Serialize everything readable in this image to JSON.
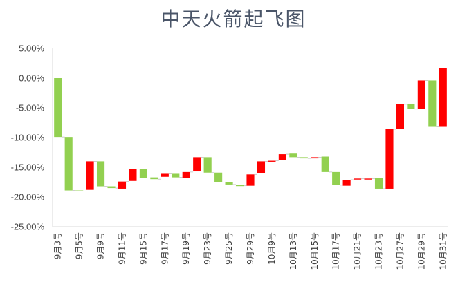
{
  "chart_data": {
    "type": "waterfall",
    "title": "中天火箭起飞图",
    "ylim": [
      -0.25,
      0.05
    ],
    "y_ticks": [
      "5.00%",
      "0.00%",
      "-5.00%",
      "-10.00%",
      "-15.00%",
      "-20.00%",
      "-25.00%"
    ],
    "y_tick_values": [
      0.05,
      0.0,
      -0.05,
      -0.1,
      -0.15,
      -0.2,
      -0.25
    ],
    "x_tick_labels": [
      "9月3号",
      "9月5号",
      "9月9号",
      "9月11号",
      "9月15号",
      "9月17号",
      "9月19号",
      "9月23号",
      "9月25号",
      "9月29号",
      "10月9号",
      "10月13号",
      "10月15号",
      "10月17号",
      "10月21号",
      "10月23号",
      "10月27号",
      "10月29号",
      "10月31号"
    ],
    "bars": [
      {
        "start": 0.0,
        "end": -0.099
      },
      {
        "start": -0.099,
        "end": -0.189
      },
      {
        "start": -0.189,
        "end": -0.19
      },
      {
        "start": -0.188,
        "end": -0.14
      },
      {
        "start": -0.14,
        "end": -0.182
      },
      {
        "start": -0.182,
        "end": -0.185
      },
      {
        "start": -0.186,
        "end": -0.174
      },
      {
        "start": -0.173,
        "end": -0.153
      },
      {
        "start": -0.153,
        "end": -0.168
      },
      {
        "start": -0.167,
        "end": -0.17
      },
      {
        "start": -0.166,
        "end": -0.161
      },
      {
        "start": -0.161,
        "end": -0.167
      },
      {
        "start": -0.168,
        "end": -0.158
      },
      {
        "start": -0.157,
        "end": -0.133
      },
      {
        "start": -0.133,
        "end": -0.159
      },
      {
        "start": -0.159,
        "end": -0.175
      },
      {
        "start": -0.175,
        "end": -0.179
      },
      {
        "start": -0.18,
        "end": -0.181
      },
      {
        "start": -0.181,
        "end": -0.162
      },
      {
        "start": -0.16,
        "end": -0.14
      },
      {
        "start": -0.14,
        "end": -0.139
      },
      {
        "start": -0.138,
        "end": -0.128
      },
      {
        "start": -0.127,
        "end": -0.133
      },
      {
        "start": -0.133,
        "end": -0.135
      },
      {
        "start": -0.135,
        "end": -0.133
      },
      {
        "start": -0.132,
        "end": -0.158
      },
      {
        "start": -0.158,
        "end": -0.18
      },
      {
        "start": -0.181,
        "end": -0.171
      },
      {
        "start": -0.17,
        "end": -0.169
      },
      {
        "start": -0.17,
        "end": -0.169
      },
      {
        "start": -0.168,
        "end": -0.186
      },
      {
        "start": -0.186,
        "end": -0.086
      },
      {
        "start": -0.086,
        "end": -0.044
      },
      {
        "start": -0.043,
        "end": -0.052
      },
      {
        "start": -0.052,
        "end": -0.004
      },
      {
        "start": -0.004,
        "end": -0.082
      },
      {
        "start": -0.082,
        "end": 0.017
      }
    ],
    "colors": {
      "up": "#ff0000",
      "down": "#92d050",
      "axis": "#d9d9d9"
    }
  }
}
